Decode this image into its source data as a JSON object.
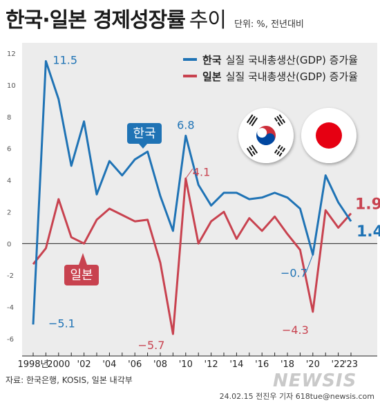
{
  "header": {
    "title_main": "한국·일본",
    "title_light_a": "경제성장률",
    "title_light_b": "추이",
    "unit": "단위: %, 전년대비"
  },
  "legend": {
    "korea": {
      "country": "한국",
      "label": "실질 국내총생산(GDP) 증가율"
    },
    "japan": {
      "country": "일본",
      "label": "실질 국내총생산(GDP) 증가율"
    }
  },
  "colors": {
    "korea": "#1f73b5",
    "japan": "#c8424f",
    "background": "#ececec"
  },
  "footer": {
    "source": "자료: 한국은행, KOSIS, 일본 내각부",
    "credit": "24.02.15 전진우 기자 618tue@newsis.com",
    "watermark": "NEWSIS"
  },
  "chart_data": {
    "type": "line",
    "xlim": [
      1998,
      2023
    ],
    "ylim": [
      -6,
      12
    ],
    "yticks": [
      -6,
      -4,
      -2,
      0,
      2,
      4,
      6,
      8,
      10,
      12
    ],
    "xtick_labels": [
      {
        "x": 1998,
        "label": "1998년"
      },
      {
        "x": 2000,
        "label": "2000"
      },
      {
        "x": 2002,
        "label": "'02"
      },
      {
        "x": 2004,
        "label": "'04"
      },
      {
        "x": 2006,
        "label": "'06"
      },
      {
        "x": 2008,
        "label": "'08"
      },
      {
        "x": 2010,
        "label": "'10"
      },
      {
        "x": 2012,
        "label": "'12"
      },
      {
        "x": 2014,
        "label": "'14"
      },
      {
        "x": 2016,
        "label": "'16"
      },
      {
        "x": 2018,
        "label": "'18"
      },
      {
        "x": 2020,
        "label": "'20"
      },
      {
        "x": 2022,
        "label": "'22"
      },
      {
        "x": 2023,
        "label": "'23"
      }
    ],
    "x": [
      1998,
      1999,
      2000,
      2001,
      2002,
      2003,
      2004,
      2005,
      2006,
      2007,
      2008,
      2009,
      2010,
      2011,
      2012,
      2013,
      2014,
      2015,
      2016,
      2017,
      2018,
      2019,
      2020,
      2021,
      2022,
      2023
    ],
    "series": [
      {
        "name": "한국",
        "color": "#1f73b5",
        "values": [
          -5.1,
          11.5,
          9.1,
          4.9,
          7.7,
          3.1,
          5.2,
          4.3,
          5.3,
          5.8,
          3.0,
          0.8,
          6.8,
          3.7,
          2.4,
          3.2,
          3.2,
          2.8,
          2.9,
          3.2,
          2.9,
          2.2,
          -0.7,
          4.3,
          2.6,
          1.4
        ]
      },
      {
        "name": "일본",
        "color": "#c8424f",
        "values": [
          -1.3,
          -0.3,
          2.8,
          0.4,
          0.0,
          1.5,
          2.2,
          1.8,
          1.4,
          1.5,
          -1.2,
          -5.7,
          4.1,
          0.0,
          1.4,
          2.0,
          0.3,
          1.6,
          0.8,
          1.7,
          0.6,
          -0.4,
          -4.3,
          2.1,
          1.0,
          1.9
        ]
      }
    ],
    "annotations": [
      {
        "series": 0,
        "x": 1998,
        "text": "−5.1"
      },
      {
        "series": 0,
        "x": 1999,
        "text": "11.5"
      },
      {
        "series": 0,
        "x": 2010,
        "text": "6.8"
      },
      {
        "series": 0,
        "x": 2020,
        "text": "−0.7"
      },
      {
        "series": 0,
        "x": 2023,
        "text": "1.4"
      },
      {
        "series": 1,
        "x": 2009,
        "text": "−5.7"
      },
      {
        "series": 1,
        "x": 2010,
        "text": "4.1"
      },
      {
        "series": 1,
        "x": 2020,
        "text": "−4.3"
      },
      {
        "series": 1,
        "x": 2023,
        "text": "1.9"
      }
    ],
    "callouts": [
      {
        "series": 0,
        "text": "한국"
      },
      {
        "series": 1,
        "text": "일본"
      }
    ]
  }
}
